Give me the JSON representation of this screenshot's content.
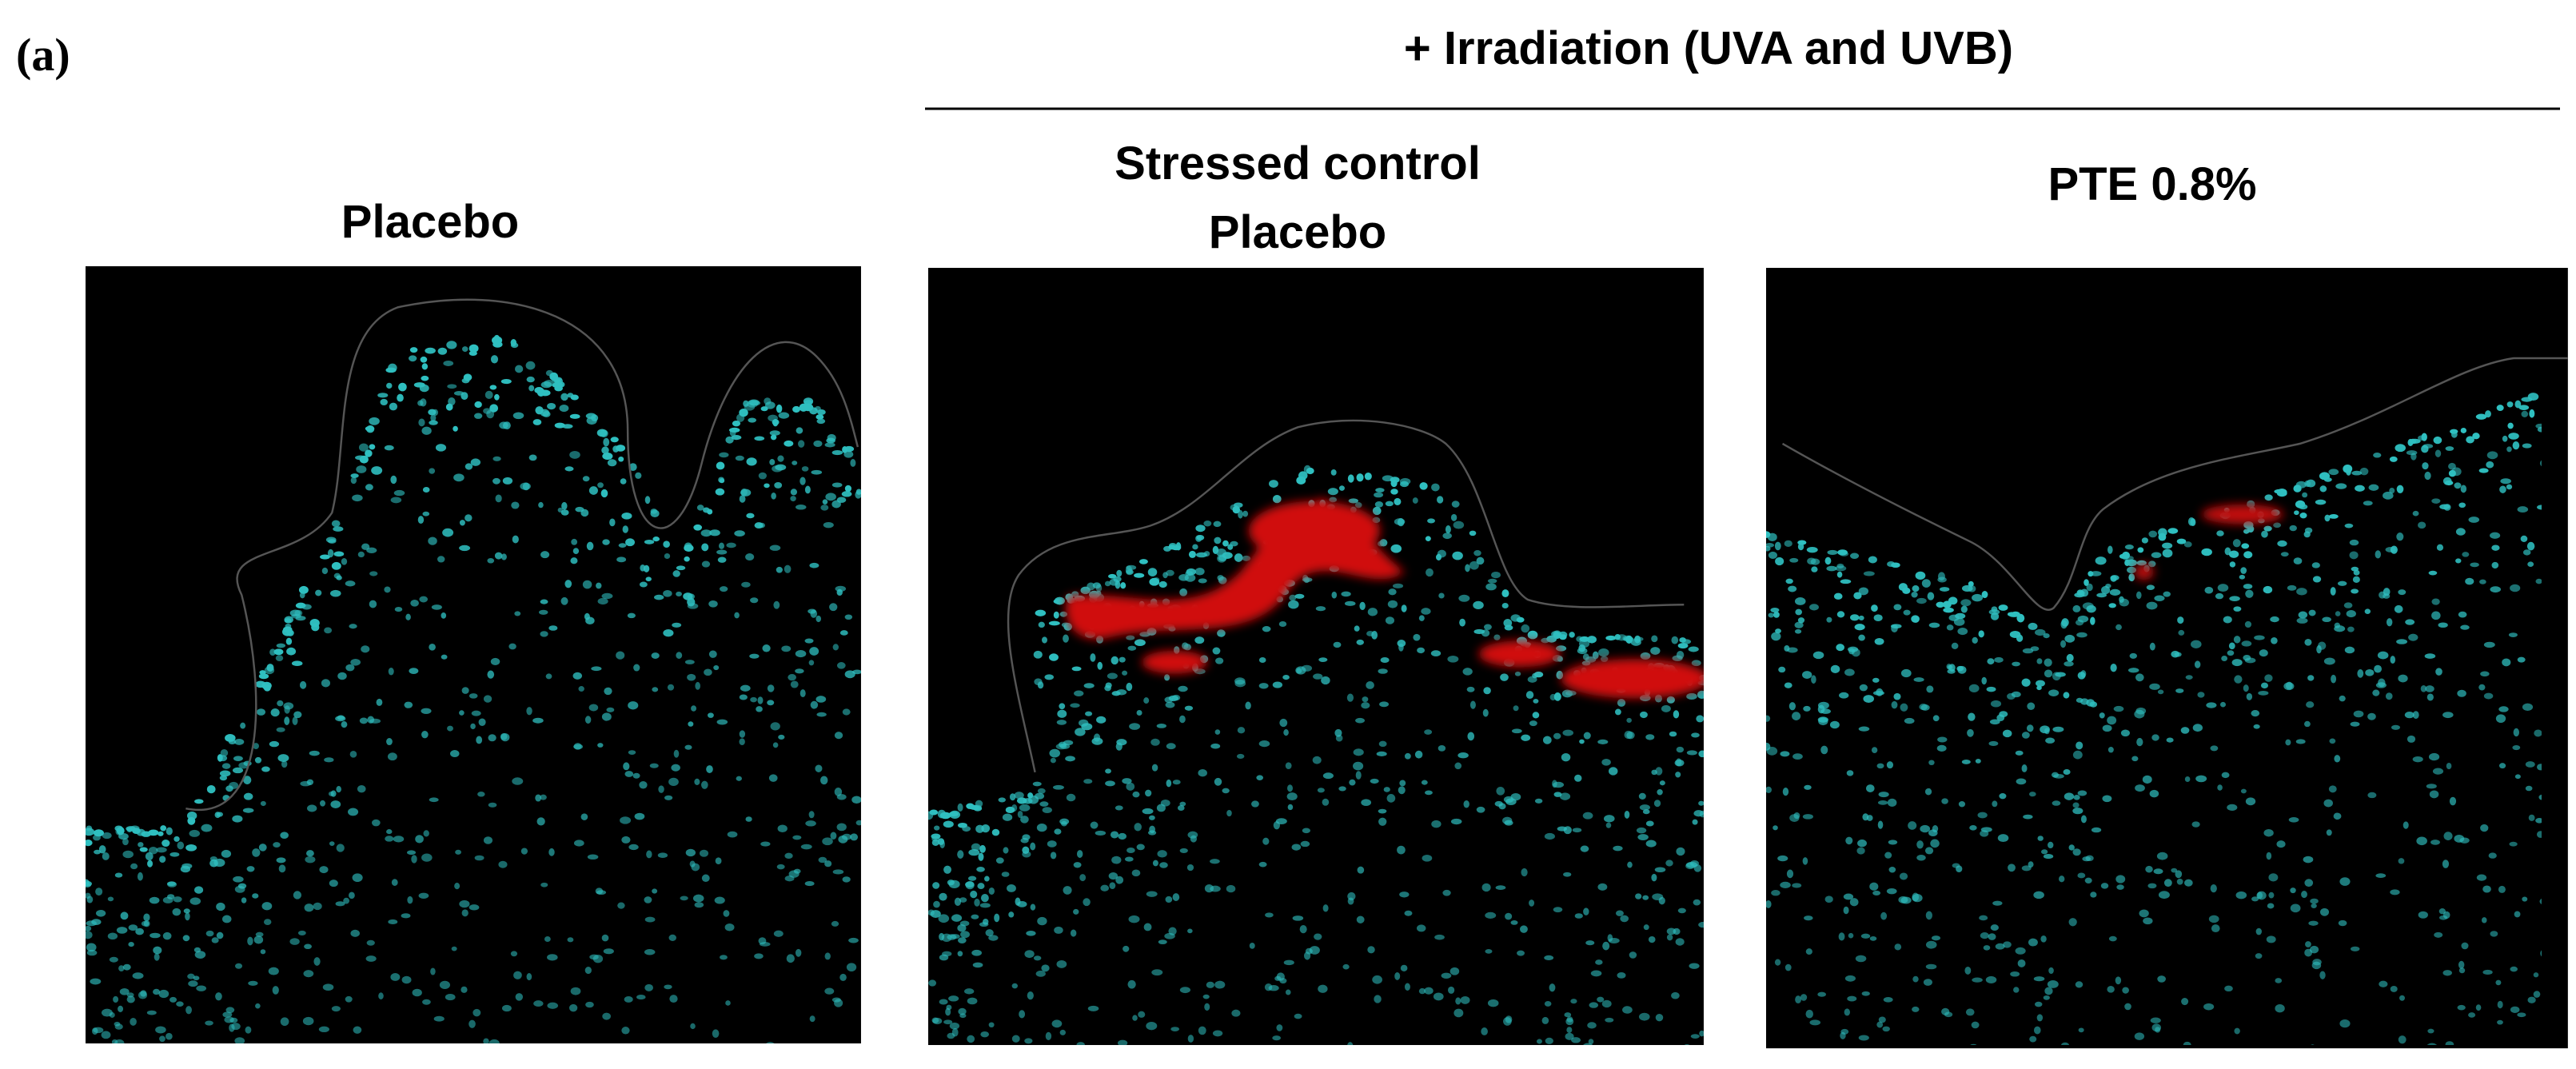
{
  "label": "(a)",
  "group_label": "+ Irradiation (UVA and UVB)",
  "panels": [
    {
      "title": [
        "Placebo"
      ]
    },
    {
      "title": [
        "Stressed control",
        "Placebo"
      ]
    },
    {
      "title": [
        "PTE 0.8%"
      ]
    }
  ]
}
